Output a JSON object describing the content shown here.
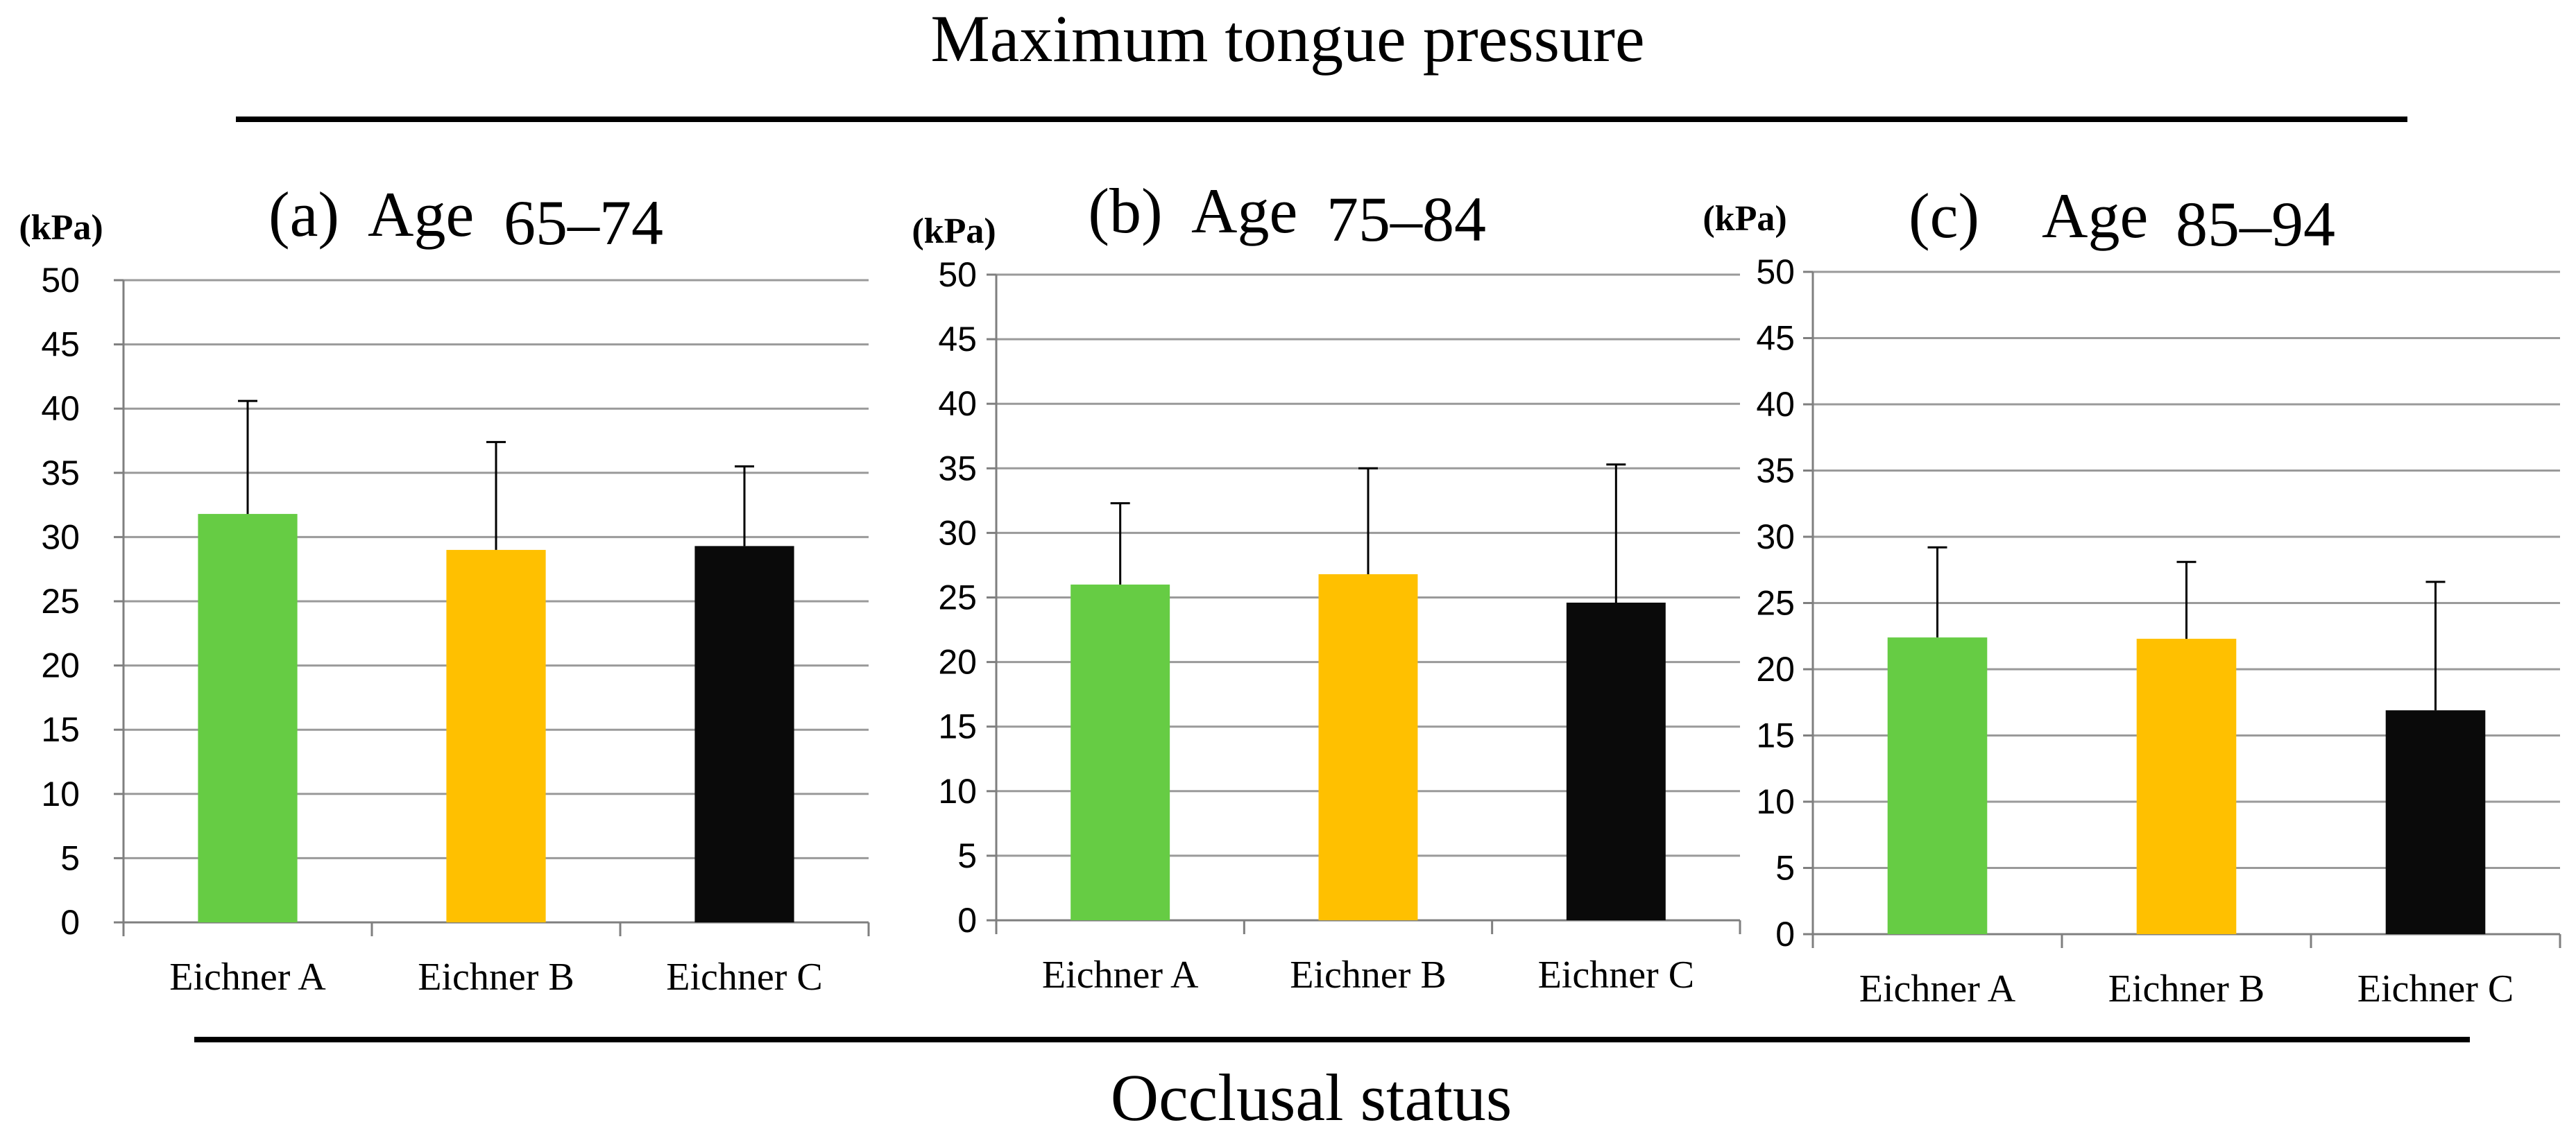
{
  "figure": {
    "title": "Maximum tongue pressure",
    "xlabel": "Occlusal status"
  },
  "colors": {
    "eichner_a": "#66cc44",
    "eichner_b": "#ffc000",
    "eichner_c": "#0a0a0a",
    "grid": "#9a9a9a",
    "axis": "#7f7f7f",
    "text": "#000000"
  },
  "chart_data": [
    {
      "type": "bar",
      "panel_label": "(a)",
      "title_prefix": "Age",
      "title_range": "65–74",
      "unit_label": "(kPa)",
      "categories": [
        "Eichner A",
        "Eichner B",
        "Eichner C"
      ],
      "values": [
        31.8,
        29.0,
        29.3
      ],
      "errors": [
        8.8,
        8.4,
        6.2
      ],
      "ylim": [
        0,
        50
      ],
      "yticks": [
        "0",
        "5",
        "10",
        "15",
        "20",
        "25",
        "30",
        "35",
        "40",
        "45",
        "50"
      ],
      "grid": true
    },
    {
      "type": "bar",
      "panel_label": "(b)",
      "title_prefix": "Age",
      "title_range": "75–84",
      "unit_label": "(kPa)",
      "categories": [
        "Eichner A",
        "Eichner B",
        "Eichner C"
      ],
      "values": [
        26.0,
        26.8,
        24.6
      ],
      "errors": [
        6.3,
        8.2,
        10.7
      ],
      "ylim": [
        0,
        50
      ],
      "yticks": [
        "0",
        "5",
        "10",
        "15",
        "20",
        "25",
        "30",
        "35",
        "40",
        "45",
        "50"
      ],
      "grid": true
    },
    {
      "type": "bar",
      "panel_label": "(c)",
      "title_prefix": "Age",
      "title_range": "85–94",
      "unit_label": "(kPa)",
      "categories": [
        "Eichner A",
        "Eichner B",
        "Eichner C"
      ],
      "values": [
        22.4,
        22.3,
        16.9
      ],
      "errors": [
        6.8,
        5.8,
        9.7
      ],
      "ylim": [
        0,
        50
      ],
      "yticks": [
        "0",
        "5",
        "10",
        "15",
        "20",
        "25",
        "30",
        "35",
        "40",
        "45",
        "50"
      ],
      "grid": true
    }
  ]
}
